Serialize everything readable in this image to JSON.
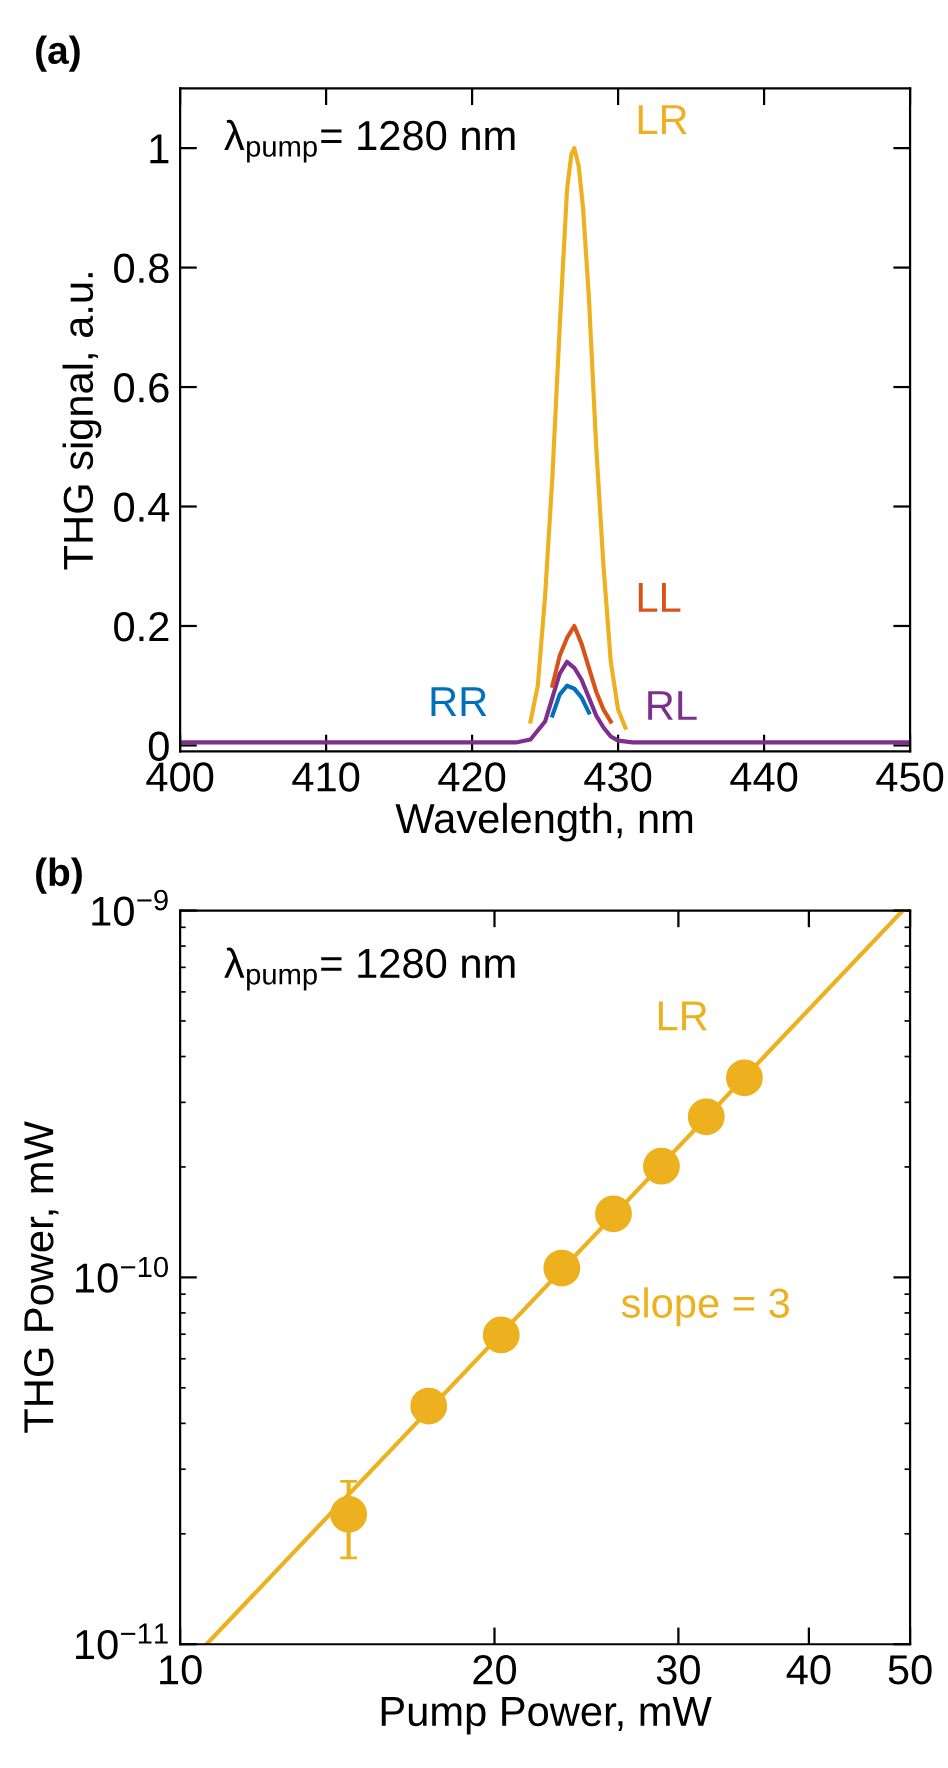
{
  "chart_data": [
    {
      "type": "line",
      "title": "(a)",
      "xlabel": "Wavelength, nm",
      "ylabel": "THG signal, a.u.",
      "xlim": [
        400,
        450
      ],
      "ylim": [
        -0.01,
        1.1
      ],
      "xticks": [
        400,
        410,
        420,
        430,
        440,
        450
      ],
      "yticks": [
        0,
        0.2,
        0.4,
        0.6,
        0.8,
        1
      ],
      "grid": false,
      "legend": false,
      "annotations": [
        "λ$_{pump}$= 1280 nm"
      ],
      "series": [
        {
          "name": "RL",
          "color": "#7e2f8e",
          "x": [
            400,
            405,
            410,
            415,
            420,
            423,
            424,
            425,
            425.5,
            426,
            426.5,
            427,
            427.5,
            428,
            428.5,
            429,
            429.5,
            430,
            431,
            435,
            440,
            445,
            450
          ],
          "values": [
            0.005,
            0.005,
            0.005,
            0.005,
            0.005,
            0.005,
            0.01,
            0.04,
            0.08,
            0.12,
            0.14,
            0.13,
            0.11,
            0.08,
            0.05,
            0.03,
            0.015,
            0.008,
            0.005,
            0.005,
            0.005,
            0.005,
            0.005
          ]
        },
        {
          "name": "LR",
          "color": "#edb120",
          "x": [
            424,
            424.5,
            425,
            425.5,
            426,
            426.5,
            426.8,
            427,
            427.3,
            427.6,
            428,
            428.5,
            429,
            429.5,
            430,
            430.5
          ],
          "values": [
            0.04,
            0.1,
            0.25,
            0.45,
            0.7,
            0.93,
            0.99,
            1.0,
            0.97,
            0.9,
            0.75,
            0.5,
            0.3,
            0.14,
            0.06,
            0.03
          ]
        },
        {
          "name": "LL",
          "color": "#d95319",
          "x": [
            425.5,
            426,
            426.5,
            427,
            427.5,
            428,
            428.5,
            429,
            429.5
          ],
          "values": [
            0.1,
            0.15,
            0.18,
            0.2,
            0.17,
            0.13,
            0.09,
            0.06,
            0.04
          ]
        },
        {
          "name": "RR",
          "color": "#0072bd",
          "x": [
            425.5,
            426,
            426.5,
            427,
            427.5,
            428
          ],
          "values": [
            0.05,
            0.085,
            0.1,
            0.095,
            0.08,
            0.055
          ]
        }
      ]
    },
    {
      "type": "scatter",
      "title": "(b)",
      "xlabel": "Pump Power, mW",
      "ylabel": "THG Power, mW",
      "log": "xy",
      "xlim": [
        10,
        50
      ],
      "ylim": [
        1e-11,
        1e-09
      ],
      "xticks": [
        10,
        20,
        30,
        40,
        50
      ],
      "yticks": [
        {
          "value": 1e-11,
          "label": "10$^{−11}$"
        },
        {
          "value": 1e-10,
          "label": "10$^{−10}$"
        },
        {
          "value": 1e-09,
          "label": "10$^{−9}$"
        }
      ],
      "grid": false,
      "legend": false,
      "annotations": [
        "λ$_{pump}$= 1280 nm",
        "slope = 3"
      ],
      "series": [
        {
          "name": "LR",
          "color": "#edb120",
          "marker": "circle",
          "x": [
            14.5,
            17.3,
            20.3,
            23.2,
            26.0,
            28.9,
            31.9,
            34.7
          ],
          "values": [
            2.26e-11,
            4.46e-11,
            6.97e-11,
            1.06e-10,
            1.49e-10,
            2.01e-10,
            2.74e-10,
            3.5e-10
          ],
          "errors": [
            [
              1.72e-11,
              2.78e-11
            ],
            null,
            null,
            null,
            null,
            null,
            null,
            null
          ]
        },
        {
          "type": "line",
          "color": "#edb120",
          "x": [
            10.6,
            49.2
          ],
          "values": [
            1e-11,
            1e-09
          ]
        }
      ]
    }
  ]
}
